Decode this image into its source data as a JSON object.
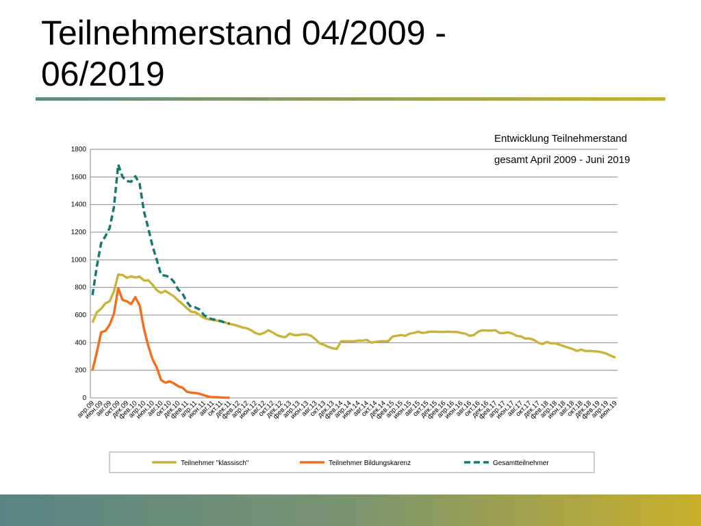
{
  "header": {
    "title": "Teilnehmerstand 04/2009 - 06/2019"
  },
  "chart_data": {
    "type": "line",
    "title": "Entwicklung Teilnehmerstand",
    "subtitle": "gesamt April 2009 - Juni 2019",
    "categories": [
      "апр.09",
      null,
      "июн.09",
      null,
      "авг.09",
      null,
      "окт.09",
      null,
      "дек.09",
      null,
      "фев.10",
      null,
      "апр.10",
      null,
      "июн.10",
      null,
      "авг.10",
      null,
      "окт.10",
      null,
      "дек.10",
      null,
      "фев.11",
      null,
      "апр.11",
      null,
      "июн.11",
      null,
      "авг.11",
      null,
      "окт.11",
      null,
      "дек.11",
      null,
      "фев.12",
      null,
      "апр.12",
      null,
      "июн.12",
      null,
      "авг.12",
      null,
      "окт.12",
      null,
      "дек.12",
      null,
      "фев.13",
      null,
      "апр.13",
      null,
      "июн.13",
      null,
      "авг.13",
      null,
      "окт.13",
      null,
      "дек.13",
      null,
      "фев.14",
      null,
      "апр.14",
      null,
      "июн.14",
      null,
      "авг.14",
      null,
      "окт.14",
      null,
      "дек.14",
      null,
      "фев.15",
      null,
      "апр.15",
      null,
      "июн.15",
      null,
      "авг.15",
      null,
      "окт.15",
      null,
      "дек.15",
      null,
      "фев.16",
      null,
      "апр.16",
      null,
      "июн.16",
      null,
      "авг.16",
      null,
      "окт.16",
      null,
      "дек.16",
      null,
      "фев.17",
      null,
      "апр.17",
      null,
      "июн.17",
      null,
      "авг.17",
      null,
      "окт.17",
      null,
      "дек.17",
      null,
      "фев.18",
      null,
      "апр.18",
      null,
      "июн.18",
      null,
      "авг.18",
      null,
      "окт.18",
      null,
      "дек.18",
      null,
      "фев.19",
      null,
      "апр.19",
      null,
      "июн.19"
    ],
    "series": [
      {
        "name": "Teilnehmer \"klassisch\"",
        "color": "#c9b43a",
        "line_style": "solid",
        "values": [
          545,
          620,
          645,
          685,
          700,
          770,
          893,
          890,
          870,
          880,
          872,
          878,
          850,
          852,
          820,
          780,
          760,
          775,
          755,
          735,
          705,
          680,
          650,
          625,
          620,
          600,
          580,
          570,
          565,
          560,
          555,
          545,
          535,
          530,
          520,
          510,
          505,
          490,
          470,
          460,
          470,
          490,
          475,
          455,
          445,
          440,
          465,
          455,
          455,
          460,
          460,
          450,
          425,
          395,
          385,
          370,
          360,
          355,
          410,
          410,
          410,
          410,
          415,
          415,
          420,
          400,
          405,
          410,
          410,
          410,
          445,
          450,
          455,
          450,
          465,
          470,
          480,
          470,
          475,
          480,
          480,
          478,
          478,
          480,
          478,
          478,
          470,
          465,
          450,
          455,
          480,
          490,
          488,
          488,
          490,
          470,
          470,
          475,
          465,
          450,
          445,
          430,
          430,
          420,
          400,
          390,
          405,
          395,
          395,
          385,
          375,
          365,
          355,
          340,
          350,
          340,
          340,
          338,
          335,
          330,
          320,
          305,
          292
        ]
      },
      {
        "name": "Teilnehmer Bildungskarenz",
        "color": "#f26f1e",
        "line_style": "solid",
        "values": [
          200,
          330,
          475,
          485,
          530,
          610,
          795,
          710,
          700,
          680,
          730,
          670,
          500,
          380,
          280,
          220,
          130,
          110,
          120,
          105,
          85,
          75,
          45,
          38,
          35,
          30,
          20,
          10,
          5,
          5,
          3,
          2,
          2,
          null,
          null,
          null,
          null,
          null,
          null,
          null,
          null,
          null,
          null,
          null,
          null,
          null,
          null,
          null,
          null,
          null,
          null,
          null,
          null,
          null,
          null,
          null,
          null,
          null,
          null,
          null,
          null,
          null,
          null,
          null,
          null,
          null,
          null,
          null,
          null,
          null,
          null,
          null,
          null,
          null,
          null,
          null,
          null,
          null,
          null,
          null,
          null,
          null,
          null,
          null,
          null,
          null,
          null,
          null,
          null,
          null,
          null,
          null,
          null,
          null,
          null,
          null,
          null,
          null,
          null,
          null,
          null,
          null,
          null,
          null,
          null,
          null,
          null,
          null,
          null,
          null,
          null,
          null,
          null,
          null,
          null,
          null,
          null,
          null,
          null,
          null,
          null,
          null,
          null
        ]
      },
      {
        "name": "Gesamtteilnehmer",
        "color": "#137a70",
        "line_style": "dashed",
        "values": [
          745,
          950,
          1120,
          1170,
          1230,
          1380,
          1690,
          1600,
          1570,
          1565,
          1605,
          1550,
          1350,
          1230,
          1100,
          1000,
          890,
          885,
          875,
          840,
          785,
          755,
          695,
          658,
          655,
          640,
          600,
          580,
          570,
          565,
          555,
          545,
          538,
          null,
          null,
          null,
          null,
          null,
          null,
          null,
          null,
          null,
          null,
          null,
          null,
          null,
          null,
          null,
          null,
          null,
          null,
          null,
          null,
          null,
          null,
          null,
          null,
          null,
          null,
          null,
          null,
          null,
          null,
          null,
          null,
          null,
          null,
          null,
          null,
          null,
          null,
          null,
          null,
          null,
          null,
          null,
          null,
          null,
          null,
          null,
          null,
          null,
          null,
          null,
          null,
          null,
          null,
          null,
          null,
          null,
          null,
          null,
          null,
          null,
          null,
          null,
          null,
          null,
          null,
          null,
          null,
          null,
          null,
          null,
          null,
          null,
          null,
          null,
          null,
          null,
          null,
          null,
          null,
          null,
          null,
          null,
          null,
          null,
          null,
          null,
          null,
          null,
          null
        ]
      }
    ],
    "ylim": [
      0,
      1800
    ],
    "yticks": [
      0,
      200,
      400,
      600,
      800,
      1000,
      1200,
      1400,
      1600,
      1800
    ],
    "grid": true,
    "legend": "bottom"
  }
}
